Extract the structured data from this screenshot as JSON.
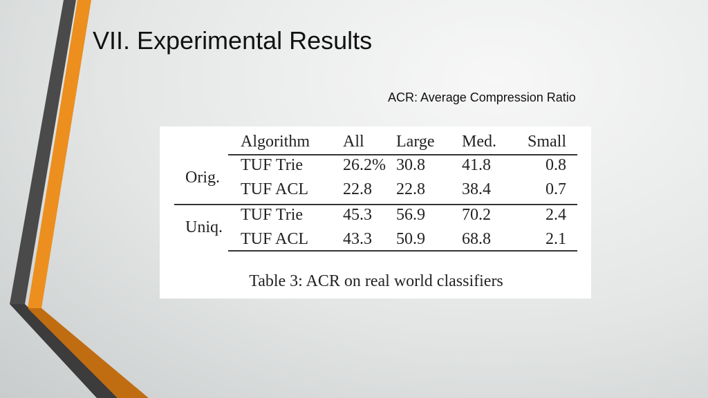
{
  "slide": {
    "title": "VII. Experimental Results",
    "note": "ACR: Average Compression Ratio"
  },
  "table": {
    "header": [
      "Algorithm",
      "All",
      "Large",
      "Med.",
      "Small"
    ],
    "groups": [
      {
        "label": "Orig.",
        "rows": [
          [
            "TUF Trie",
            "26.2%",
            "30.8",
            "41.8",
            "0.8"
          ],
          [
            "TUF ACL",
            "22.8",
            "22.8",
            "38.4",
            "0.7"
          ]
        ]
      },
      {
        "label": "Uniq.",
        "rows": [
          [
            "TUF Trie",
            "45.3",
            "56.9",
            "70.2",
            "2.4"
          ],
          [
            "TUF ACL",
            "43.3",
            "50.9",
            "68.8",
            "2.1"
          ]
        ]
      }
    ],
    "caption": "Table 3: ACR on real world classifiers"
  }
}
